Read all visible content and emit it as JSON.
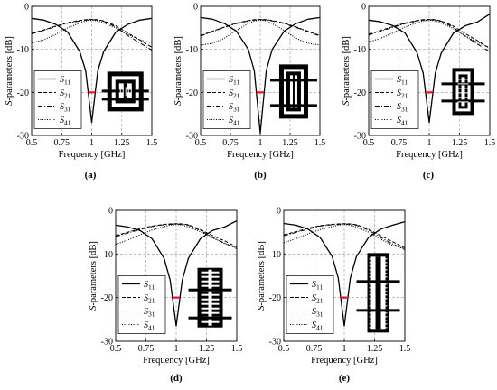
{
  "chart_data": [
    {
      "type": "line",
      "panel_label": "(a)",
      "xlabel": "Frequency [GHz]",
      "ylabel": "S-parameters [dB]",
      "xlim": [
        0.5,
        1.5
      ],
      "ylim": [
        -30,
        0
      ],
      "xticks": [
        0.5,
        0.75,
        1,
        1.25,
        1.5
      ],
      "xtick_labels": [
        "0.5",
        "0.75",
        "1",
        "1.25",
        "1.5"
      ],
      "yticks": [
        0,
        -10,
        -20,
        -30
      ],
      "ytick_labels": [
        "0",
        "-10",
        "-20",
        "-30"
      ],
      "grid": true,
      "legend_position": "lower-left",
      "highlight": {
        "color": "#e8112d",
        "x": [
          0.97,
          1.03
        ],
        "y": -20
      },
      "x": [
        0.5,
        0.6,
        0.7,
        0.8,
        0.9,
        0.95,
        1.0,
        1.05,
        1.1,
        1.2,
        1.3,
        1.4,
        1.5
      ],
      "series": [
        {
          "name": "S11",
          "style": "solid",
          "values": [
            -2.8,
            -3.2,
            -4.2,
            -6.0,
            -10.5,
            -15.0,
            -27.0,
            -15.0,
            -10.5,
            -6.0,
            -4.2,
            -3.2,
            -2.8
          ]
        },
        {
          "name": "S21",
          "style": "dashed",
          "values": [
            -6.3,
            -5.5,
            -4.6,
            -3.8,
            -3.3,
            -3.1,
            -3.05,
            -3.1,
            -3.4,
            -4.5,
            -6.2,
            -7.8,
            -9.5
          ]
        },
        {
          "name": "S31",
          "style": "dashdot",
          "values": [
            -6.4,
            -5.6,
            -4.7,
            -3.9,
            -3.4,
            -3.2,
            -3.1,
            -3.2,
            -3.5,
            -4.8,
            -6.8,
            -8.5,
            -10.2
          ]
        },
        {
          "name": "S41",
          "style": "dotted",
          "values": [
            -8.5,
            -7.8,
            -6.5,
            -5.0,
            -3.9,
            -3.4,
            -3.2,
            -3.4,
            -3.9,
            -5.0,
            -6.5,
            -7.8,
            -8.5
          ]
        }
      ]
    },
    {
      "type": "line",
      "panel_label": "(b)",
      "xlabel": "Frequency [GHz]",
      "ylabel": "S-parameters [dB]",
      "xlim": [
        0.5,
        1.5
      ],
      "ylim": [
        -30,
        0
      ],
      "xticks": [
        0.5,
        0.75,
        1,
        1.25,
        1.5
      ],
      "xtick_labels": [
        "0.5",
        "0.75",
        "1",
        "1.25",
        "1.5"
      ],
      "yticks": [
        0,
        -10,
        -20,
        -30
      ],
      "ytick_labels": [
        "0",
        "-10",
        "-20",
        "-30"
      ],
      "grid": true,
      "legend_position": "lower-left",
      "highlight": {
        "color": "#e8112d",
        "x": [
          0.97,
          1.03
        ],
        "y": -20
      },
      "x": [
        0.5,
        0.6,
        0.7,
        0.8,
        0.9,
        0.95,
        1.0,
        1.05,
        1.1,
        1.2,
        1.3,
        1.4,
        1.5
      ],
      "series": [
        {
          "name": "S11",
          "style": "solid",
          "values": [
            -2.6,
            -3.0,
            -4.0,
            -5.8,
            -10.0,
            -15.0,
            -29.5,
            -15.0,
            -10.0,
            -5.8,
            -4.0,
            -3.0,
            -2.6
          ]
        },
        {
          "name": "S21",
          "style": "dashed",
          "values": [
            -6.8,
            -5.8,
            -4.8,
            -3.9,
            -3.3,
            -3.1,
            -3.05,
            -3.1,
            -3.3,
            -3.9,
            -4.8,
            -5.8,
            -6.8
          ]
        },
        {
          "name": "S31",
          "style": "dashdot",
          "values": [
            -6.9,
            -5.9,
            -4.9,
            -4.0,
            -3.4,
            -3.2,
            -3.1,
            -3.2,
            -3.4,
            -4.0,
            -4.9,
            -5.9,
            -6.9
          ]
        },
        {
          "name": "S41",
          "style": "dotted",
          "values": [
            -9.0,
            -8.6,
            -7.4,
            -5.6,
            -4.0,
            -3.4,
            -3.2,
            -3.4,
            -4.0,
            -5.6,
            -7.4,
            -8.6,
            -9.0
          ]
        }
      ]
    },
    {
      "type": "line",
      "panel_label": "(c)",
      "xlabel": "Frequency [GHz]",
      "ylabel": "S-parameters [dB]",
      "xlim": [
        0.5,
        1.5
      ],
      "ylim": [
        -30,
        0
      ],
      "xticks": [
        0.5,
        0.75,
        1,
        1.25,
        1.5
      ],
      "xtick_labels": [
        "0.5",
        "0.75",
        "1",
        "1.25",
        "1.5"
      ],
      "yticks": [
        0,
        -10,
        -20,
        -30
      ],
      "ytick_labels": [
        "0",
        "-10",
        "-20",
        "-30"
      ],
      "grid": true,
      "legend_position": "lower-left",
      "highlight": {
        "color": "#e8112d",
        "x": [
          0.97,
          1.03
        ],
        "y": -20
      },
      "x": [
        0.5,
        0.6,
        0.7,
        0.8,
        0.9,
        0.95,
        1.0,
        1.05,
        1.1,
        1.2,
        1.3,
        1.4,
        1.5
      ],
      "series": [
        {
          "name": "S11",
          "style": "solid",
          "values": [
            -3.2,
            -3.6,
            -4.5,
            -6.2,
            -10.8,
            -15.5,
            -27.0,
            -15.5,
            -10.8,
            -6.2,
            -4.5,
            -3.6,
            -1.8
          ]
        },
        {
          "name": "S21",
          "style": "dashed",
          "values": [
            -6.5,
            -5.6,
            -4.7,
            -3.9,
            -3.3,
            -3.1,
            -3.05,
            -3.1,
            -3.4,
            -4.6,
            -6.4,
            -8.0,
            -9.8
          ]
        },
        {
          "name": "S31",
          "style": "dashdot",
          "values": [
            -6.7,
            -5.8,
            -4.9,
            -4.0,
            -3.4,
            -3.2,
            -3.1,
            -3.2,
            -3.5,
            -4.9,
            -7.0,
            -8.8,
            -10.6
          ]
        },
        {
          "name": "S41",
          "style": "dotted",
          "values": [
            -8.3,
            -7.4,
            -6.2,
            -4.8,
            -3.8,
            -3.4,
            -3.2,
            -3.4,
            -3.9,
            -5.2,
            -6.9,
            -8.4,
            -9.6
          ]
        }
      ]
    },
    {
      "type": "line",
      "panel_label": "(d)",
      "xlabel": "Frequency [GHz]",
      "ylabel": "S-parameters [dB]",
      "xlim": [
        0.5,
        1.5
      ],
      "ylim": [
        -30,
        0
      ],
      "xticks": [
        0.5,
        0.75,
        1,
        1.25,
        1.5
      ],
      "xtick_labels": [
        "0.5",
        "0.75",
        "1",
        "1.25",
        "1.5"
      ],
      "yticks": [
        0,
        -10,
        -20,
        -30
      ],
      "ytick_labels": [
        "0",
        "-10",
        "-20",
        "-30"
      ],
      "grid": true,
      "legend_position": "lower-left",
      "highlight": {
        "color": "#e8112d",
        "x": [
          0.97,
          1.03
        ],
        "y": -20
      },
      "x": [
        0.5,
        0.6,
        0.7,
        0.8,
        0.9,
        0.95,
        1.0,
        1.05,
        1.1,
        1.2,
        1.3,
        1.4,
        1.5
      ],
      "series": [
        {
          "name": "S11",
          "style": "solid",
          "values": [
            -3.4,
            -3.8,
            -4.6,
            -6.5,
            -11.0,
            -16.0,
            -26.5,
            -16.0,
            -11.0,
            -6.5,
            -4.6,
            -3.8,
            -2.4
          ]
        },
        {
          "name": "S21",
          "style": "dashed",
          "values": [
            -5.8,
            -5.0,
            -4.2,
            -3.6,
            -3.2,
            -3.1,
            -3.05,
            -3.1,
            -3.3,
            -4.4,
            -5.8,
            -7.0,
            -8.4
          ]
        },
        {
          "name": "S31",
          "style": "dashdot",
          "values": [
            -6.0,
            -5.2,
            -4.4,
            -3.7,
            -3.3,
            -3.2,
            -3.1,
            -3.2,
            -3.4,
            -4.6,
            -6.2,
            -7.5,
            -8.8
          ]
        },
        {
          "name": "S41",
          "style": "dotted",
          "values": [
            -7.8,
            -6.8,
            -5.6,
            -4.5,
            -3.7,
            -3.4,
            -3.2,
            -3.4,
            -3.8,
            -4.9,
            -6.3,
            -7.6,
            -8.6
          ]
        }
      ]
    },
    {
      "type": "line",
      "panel_label": "(e)",
      "xlabel": "Frequency [GHz]",
      "ylabel": "S-parameters [dB]",
      "xlim": [
        0.5,
        1.5
      ],
      "ylim": [
        -30,
        0
      ],
      "xticks": [
        0.5,
        0.75,
        1,
        1.25,
        1.5
      ],
      "xtick_labels": [
        "0.5",
        "0.75",
        "1",
        "1.25",
        "1.5"
      ],
      "yticks": [
        0,
        -10,
        -20,
        -30
      ],
      "ytick_labels": [
        "0",
        "-10",
        "-20",
        "-30"
      ],
      "grid": true,
      "legend_position": "lower-left",
      "highlight": {
        "color": "#e8112d",
        "x": [
          0.97,
          1.03
        ],
        "y": -20
      },
      "x": [
        0.5,
        0.6,
        0.7,
        0.8,
        0.9,
        0.95,
        1.0,
        1.05,
        1.1,
        1.2,
        1.3,
        1.4,
        1.5
      ],
      "series": [
        {
          "name": "S11",
          "style": "solid",
          "values": [
            -3.0,
            -3.4,
            -4.3,
            -6.2,
            -10.6,
            -15.5,
            -26.5,
            -15.5,
            -10.6,
            -6.2,
            -4.3,
            -3.4,
            -2.6
          ]
        },
        {
          "name": "S21",
          "style": "dashed",
          "values": [
            -5.6,
            -4.9,
            -4.1,
            -3.5,
            -3.2,
            -3.1,
            -3.05,
            -3.1,
            -3.3,
            -4.3,
            -5.8,
            -7.2,
            -8.6
          ]
        },
        {
          "name": "S31",
          "style": "dashdot",
          "values": [
            -5.8,
            -5.1,
            -4.3,
            -3.6,
            -3.3,
            -3.2,
            -3.1,
            -3.2,
            -3.4,
            -4.5,
            -6.2,
            -7.7,
            -9.0
          ]
        },
        {
          "name": "S41",
          "style": "dotted",
          "values": [
            -7.4,
            -6.5,
            -5.4,
            -4.4,
            -3.7,
            -3.4,
            -3.2,
            -3.4,
            -3.8,
            -5.0,
            -6.6,
            -8.0,
            -8.8
          ]
        }
      ]
    }
  ]
}
